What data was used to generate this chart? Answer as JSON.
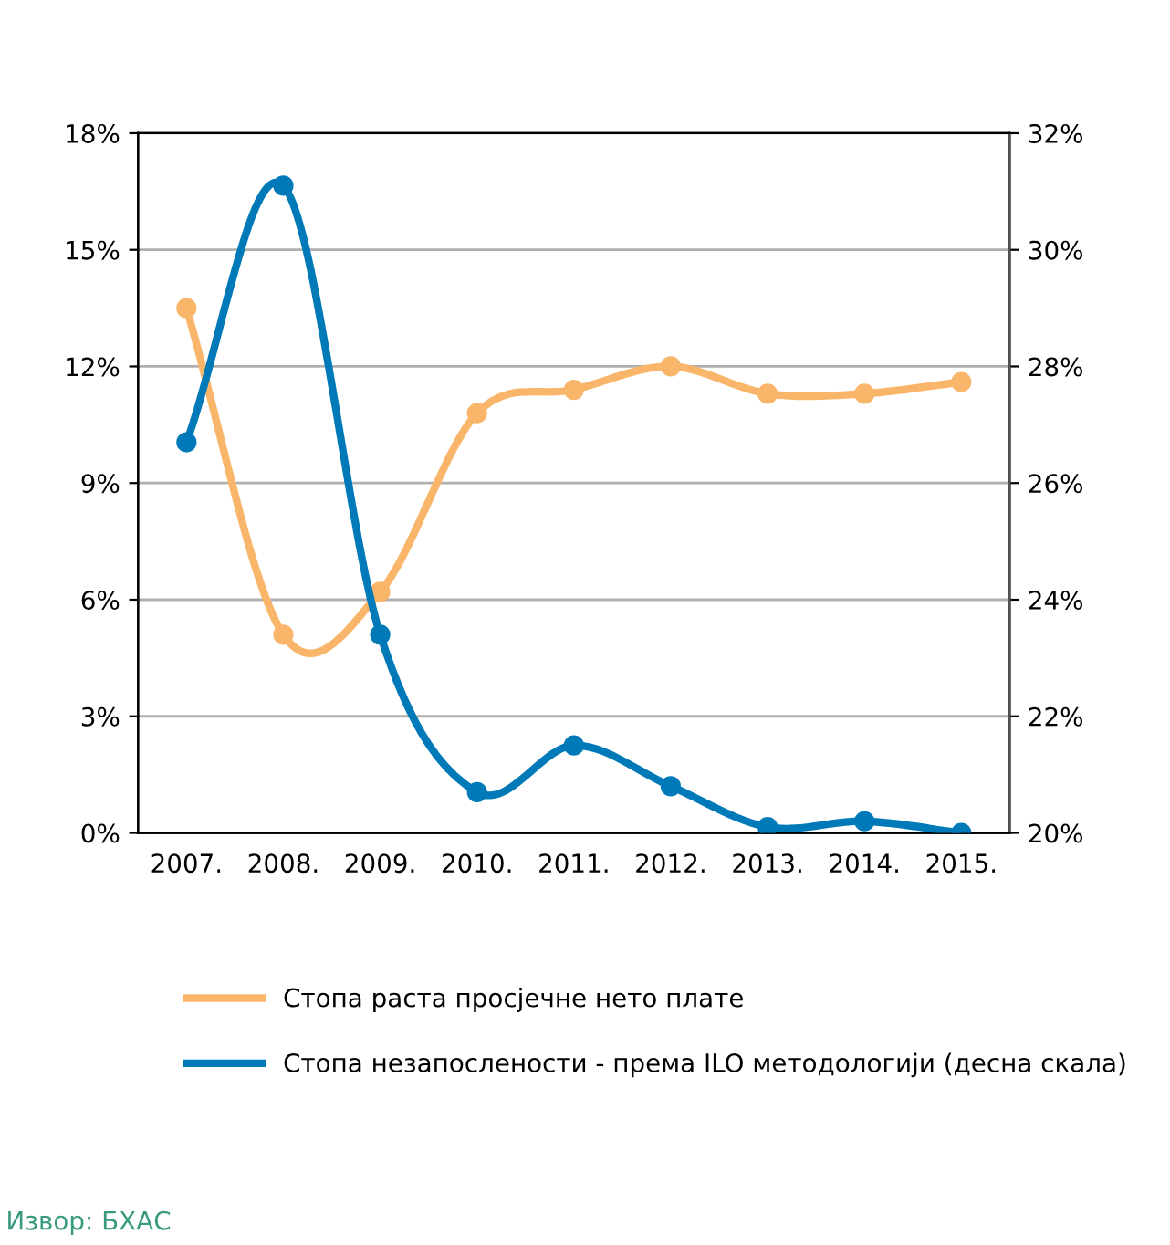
{
  "chart_data": {
    "type": "line",
    "categories": [
      "2007.",
      "2008.",
      "2009.",
      "2010.",
      "2011.",
      "2012.",
      "2013.",
      "2014.",
      "2015."
    ],
    "series": [
      {
        "name": "Стопа раста просјечне нето плате",
        "color": "#f9b66b",
        "values": [
          13.5,
          5.1,
          6.2,
          10.8,
          11.4,
          12.0,
          11.3,
          11.3,
          11.6
        ]
      },
      {
        "name": "Стопа незапослености - према ILO методологији (десна скала)",
        "color": "#0079b8",
        "axis": "y2",
        "values": [
          26.7,
          31.1,
          23.4,
          20.7,
          21.5,
          20.8,
          20.1,
          20.2,
          20.0
        ]
      }
    ],
    "ylim": [
      0,
      18
    ],
    "yticks": [
      {
        "value": 0,
        "label": "0%"
      },
      {
        "value": 3,
        "label": "3%"
      },
      {
        "value": 6,
        "label": "6%"
      },
      {
        "value": 9,
        "label": "9%"
      },
      {
        "value": 12,
        "label": "12%"
      },
      {
        "value": 15,
        "label": "15%"
      },
      {
        "value": 18,
        "label": "18%"
      }
    ],
    "y2lim": [
      20,
      32
    ],
    "y2ticks": [
      {
        "value": 20,
        "label": "20%"
      },
      {
        "value": 22,
        "label": "22%"
      },
      {
        "value": 24,
        "label": "24%"
      },
      {
        "value": 26,
        "label": "26%"
      },
      {
        "value": 28,
        "label": "28%"
      },
      {
        "value": 30,
        "label": "30%"
      },
      {
        "value": 32,
        "label": "32%"
      }
    ],
    "grid": "y",
    "marker": "circle",
    "line_style": "solid",
    "legend": "bottom",
    "annotations": [
      "Извор: БХАС"
    ]
  }
}
